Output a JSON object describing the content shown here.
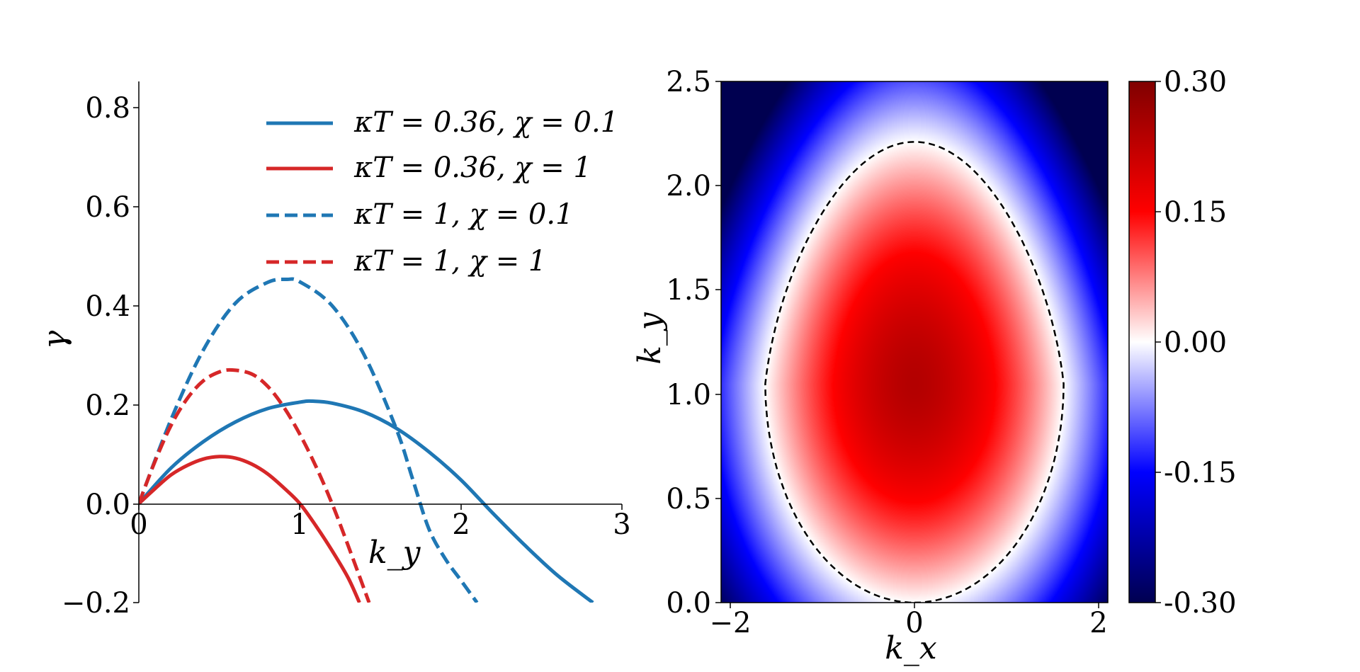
{
  "chart_data": [
    {
      "type": "line",
      "xlabel": "k_y",
      "ylabel": "γ",
      "xlim": [
        0,
        3
      ],
      "ylim": [
        -0.2,
        0.85
      ],
      "x_ticks": [
        "0",
        "1",
        "2",
        "3"
      ],
      "y_ticks": [
        "−0.2",
        "0.0",
        "0.2",
        "0.4",
        "0.6",
        "0.8"
      ],
      "legend_position": "top-right",
      "grid": false,
      "series": [
        {
          "name": "κT = 0.36, χ = 0.1",
          "color": "#1f77b4",
          "dash": false,
          "x": [
            0,
            0.2,
            0.4,
            0.6,
            0.8,
            1.0,
            1.08,
            1.2,
            1.4,
            1.6,
            1.8,
            2.0,
            2.2,
            2.4,
            2.6,
            2.82
          ],
          "y": [
            0,
            0.072,
            0.125,
            0.165,
            0.192,
            0.205,
            0.207,
            0.203,
            0.185,
            0.152,
            0.105,
            0.048,
            -0.02,
            -0.085,
            -0.145,
            -0.2
          ]
        },
        {
          "name": "κT = 0.36, χ = 1",
          "color": "#d62728",
          "dash": false,
          "x": [
            0,
            0.1,
            0.2,
            0.3,
            0.4,
            0.5,
            0.6,
            0.7,
            0.8,
            0.9,
            1.0,
            1.1,
            1.2,
            1.3,
            1.37
          ],
          "y": [
            0,
            0.03,
            0.058,
            0.077,
            0.09,
            0.095,
            0.092,
            0.08,
            0.06,
            0.032,
            0.0,
            -0.045,
            -0.095,
            -0.15,
            -0.2
          ]
        },
        {
          "name": "κT = 1, χ = 0.1",
          "color": "#1f77b4",
          "dash": true,
          "x": [
            0,
            0.2,
            0.4,
            0.6,
            0.8,
            0.92,
            1.0,
            1.2,
            1.4,
            1.6,
            1.7,
            1.8,
            1.9,
            2.0,
            2.1
          ],
          "y": [
            0,
            0.17,
            0.31,
            0.405,
            0.447,
            0.453,
            0.448,
            0.4,
            0.3,
            0.15,
            0.05,
            -0.05,
            -0.11,
            -0.155,
            -0.2
          ]
        },
        {
          "name": "κT = 1, χ = 1",
          "color": "#d62728",
          "dash": true,
          "x": [
            0,
            0.1,
            0.2,
            0.3,
            0.4,
            0.5,
            0.58,
            0.7,
            0.8,
            0.9,
            1.0,
            1.1,
            1.2,
            1.3,
            1.43
          ],
          "y": [
            0,
            0.085,
            0.158,
            0.212,
            0.248,
            0.266,
            0.27,
            0.262,
            0.237,
            0.195,
            0.14,
            0.075,
            0.0,
            -0.085,
            -0.2
          ]
        }
      ]
    },
    {
      "type": "heatmap",
      "xlabel": "k_x",
      "ylabel": "k_y",
      "xlim": [
        -2.1,
        2.1
      ],
      "ylim": [
        0,
        2.5
      ],
      "x_ticks": [
        "−2",
        "0",
        "2"
      ],
      "y_ticks": [
        "0.0",
        "0.5",
        "1.0",
        "1.5",
        "2.0",
        "2.5"
      ],
      "colormap": "seismic",
      "clim": [
        -0.3,
        0.3
      ],
      "colorbar_ticks": [
        "-0.30",
        "-0.15",
        "0.00",
        "0.15",
        "0.30"
      ],
      "contour_level": 0,
      "contour_style": "black dashed",
      "peak": {
        "kx": 0,
        "ky": 1.05,
        "value": 0.24
      },
      "zero_contour_extent": {
        "kx": [
          -1.62,
          1.62
        ],
        "ky": [
          0,
          2.21
        ]
      }
    }
  ]
}
